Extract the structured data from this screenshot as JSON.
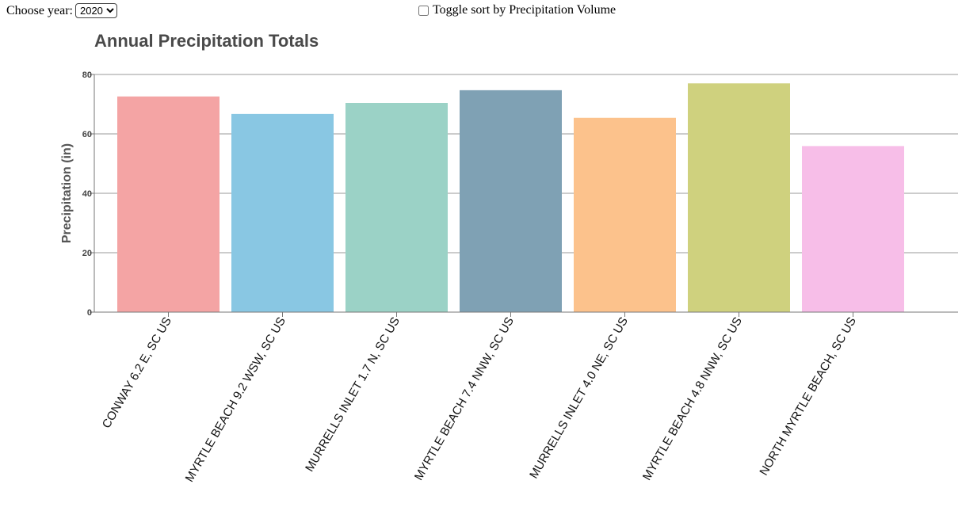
{
  "controls": {
    "year_label": "Choose year:",
    "year_value": "2020",
    "year_options": [
      "2020"
    ],
    "sort_toggle_label": "Toggle sort by Precipitation Volume",
    "sort_toggle_checked": false
  },
  "chart_data": {
    "type": "bar",
    "title": "Annual Precipitation Totals",
    "xlabel": "",
    "ylabel": "Precipitation (in)",
    "ylim": [
      0,
      80
    ],
    "yticks": [
      0,
      20,
      40,
      60,
      80
    ],
    "grid": true,
    "categories": [
      "CONWAY 6.2 E, SC US",
      "MYRTLE BEACH 9.2 WSW, SC US",
      "MURRELLS INLET 1.7 N, SC US",
      "MYRTLE BEACH 7.4 NNW, SC US",
      "MURRELLS INLET 4.0 NE, SC US",
      "MYRTLE BEACH 4.8 NNW, SC US",
      "NORTH MYRTLE BEACH, SC US"
    ],
    "values": [
      72.6,
      66.7,
      70.4,
      74.7,
      65.4,
      77.0,
      55.9
    ],
    "colors": [
      "#f4a4a4",
      "#89c7e3",
      "#9bd2c6",
      "#7fa1b4",
      "#fcc28c",
      "#cfd17e",
      "#f7bee8"
    ]
  }
}
